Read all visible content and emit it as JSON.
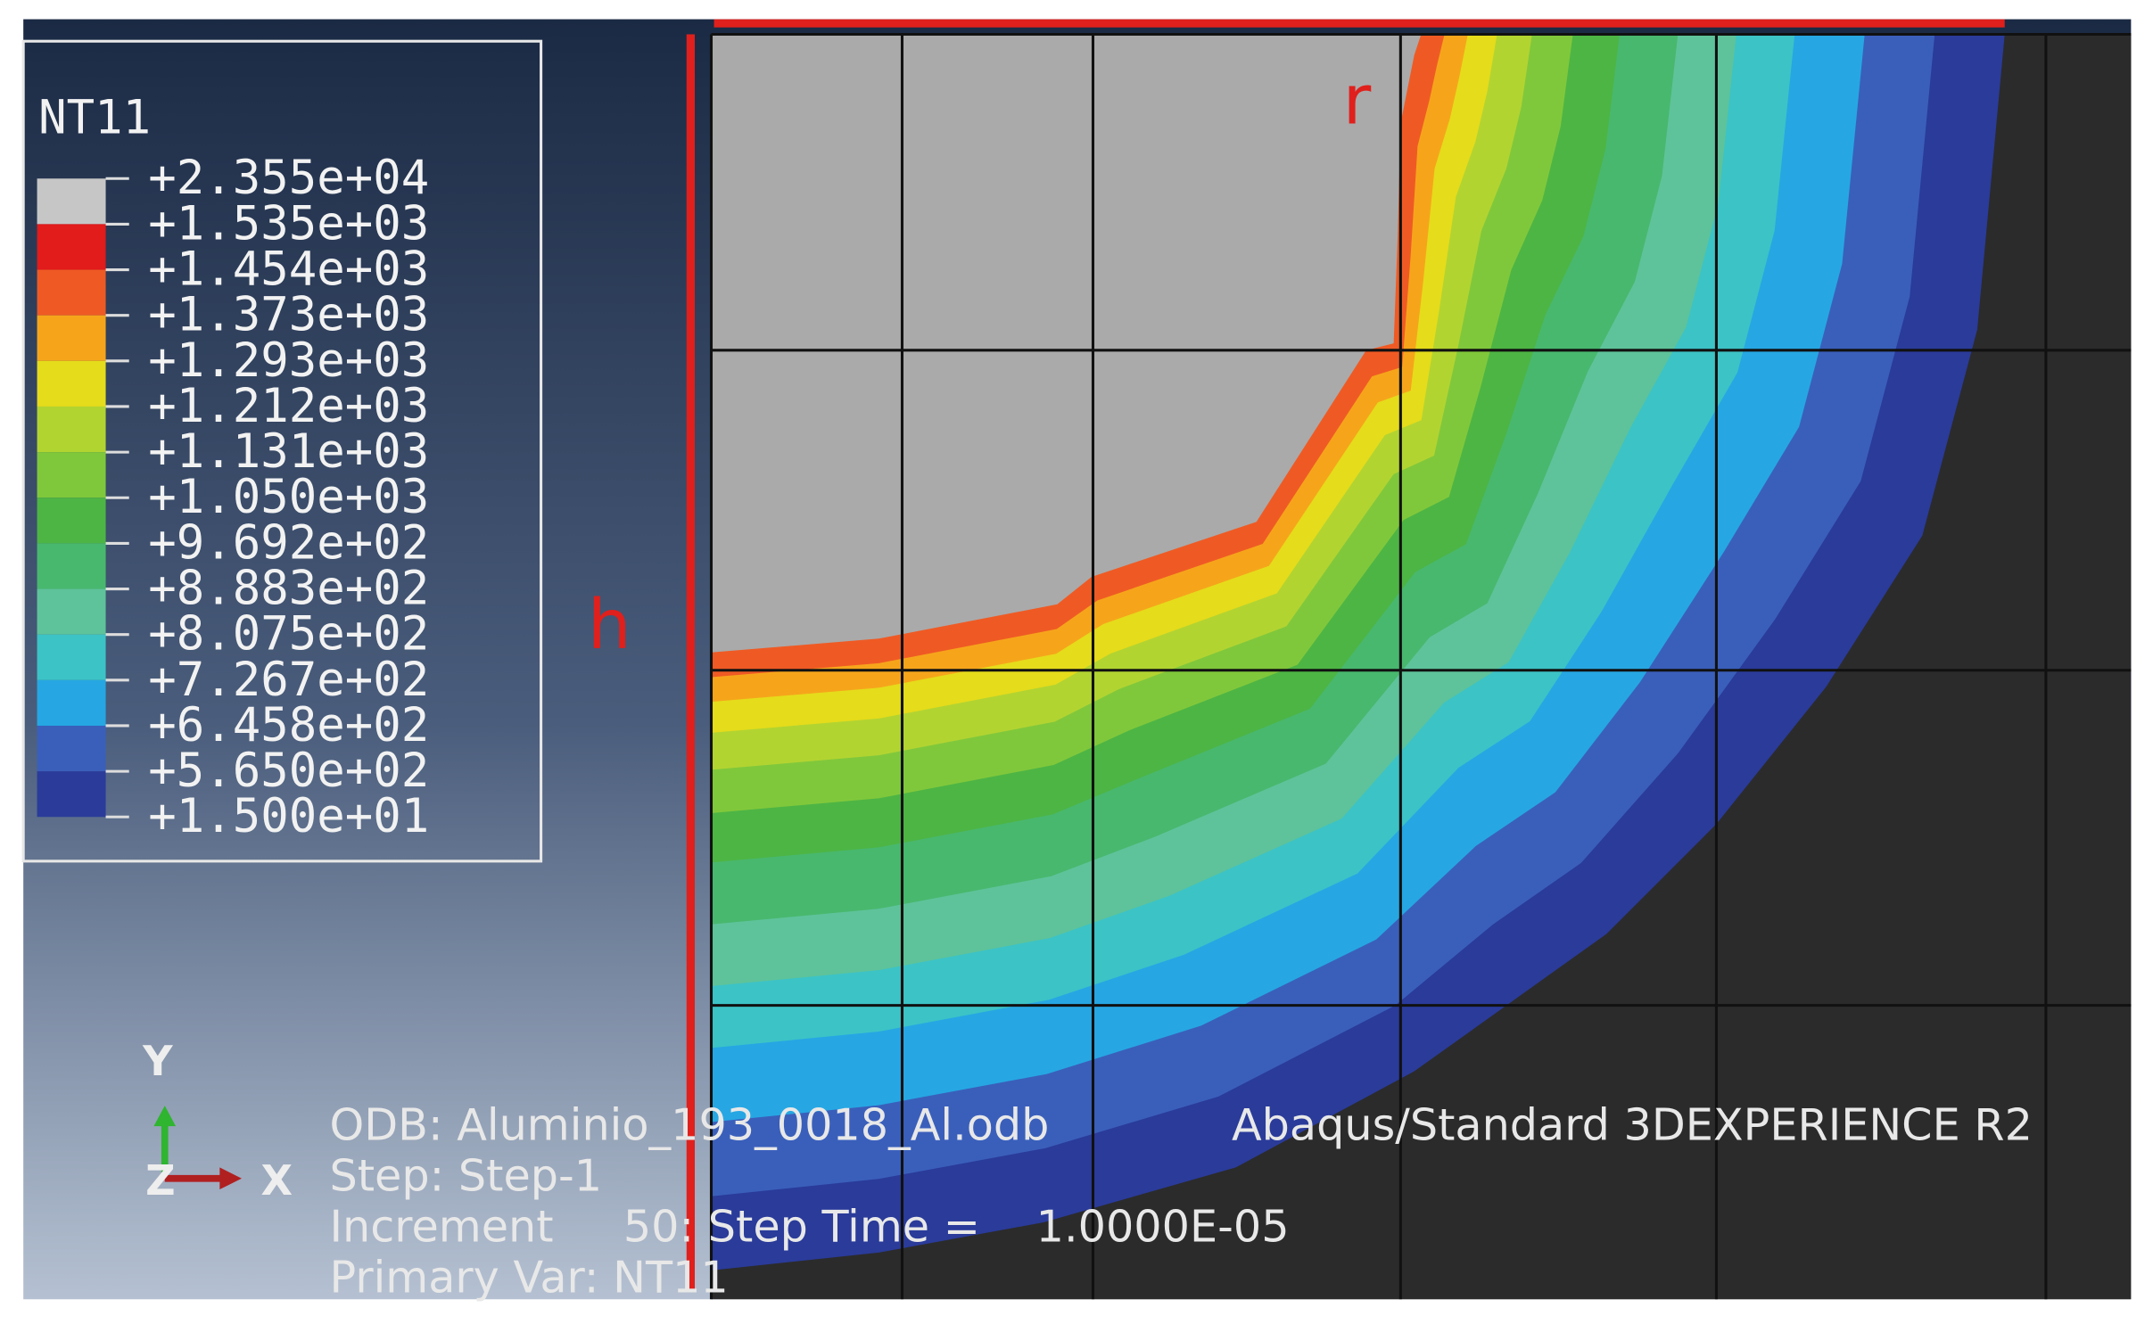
{
  "legend": {
    "title": "NT11",
    "labels": [
      "+2.355e+04",
      "+1.535e+03",
      "+1.454e+03",
      "+1.373e+03",
      "+1.293e+03",
      "+1.212e+03",
      "+1.131e+03",
      "+1.050e+03",
      "+9.692e+02",
      "+8.883e+02",
      "+8.075e+02",
      "+7.267e+02",
      "+6.458e+02",
      "+5.650e+02",
      "+1.500e+01"
    ]
  },
  "annotations": {
    "r": "r",
    "h": "h"
  },
  "triad": {
    "y": "Y",
    "z": "Z",
    "x": "X"
  },
  "info": {
    "odb": "ODB: Aluminio_193_0018_Al.odb",
    "solver": "Abaqus/Standard 3DEXPERIENCE R2",
    "step": "Step: Step-1",
    "increment": "Increment     50: Step Time =    1.0000E-05",
    "primary": "Primary Var: NT11"
  }
}
